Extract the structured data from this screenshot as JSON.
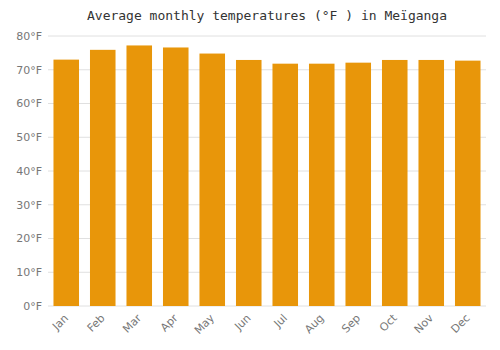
{
  "chart_data": {
    "type": "bar",
    "title": "Average monthly temperatures (°F ) in Meïganga",
    "categories": [
      "Jan",
      "Feb",
      "Mar",
      "Apr",
      "May",
      "Jun",
      "Jul",
      "Aug",
      "Sep",
      "Oct",
      "Nov",
      "Dec"
    ],
    "values": [
      73.0,
      75.9,
      77.2,
      76.6,
      74.8,
      72.9,
      71.8,
      71.8,
      72.1,
      72.9,
      72.9,
      72.7
    ],
    "color": "#E8960A",
    "ylim": [
      0,
      80
    ],
    "yticks": [
      {
        "value": 0,
        "label": "0°F"
      },
      {
        "value": 10,
        "label": "10°F"
      },
      {
        "value": 20,
        "label": "20°F"
      },
      {
        "value": 30,
        "label": "30°F"
      },
      {
        "value": 40,
        "label": "40°F"
      },
      {
        "value": 50,
        "label": "50°F"
      },
      {
        "value": 60,
        "label": "60°F"
      },
      {
        "value": 70,
        "label": "70°F"
      },
      {
        "value": 80,
        "label": "80°F"
      }
    ],
    "grid": true
  }
}
